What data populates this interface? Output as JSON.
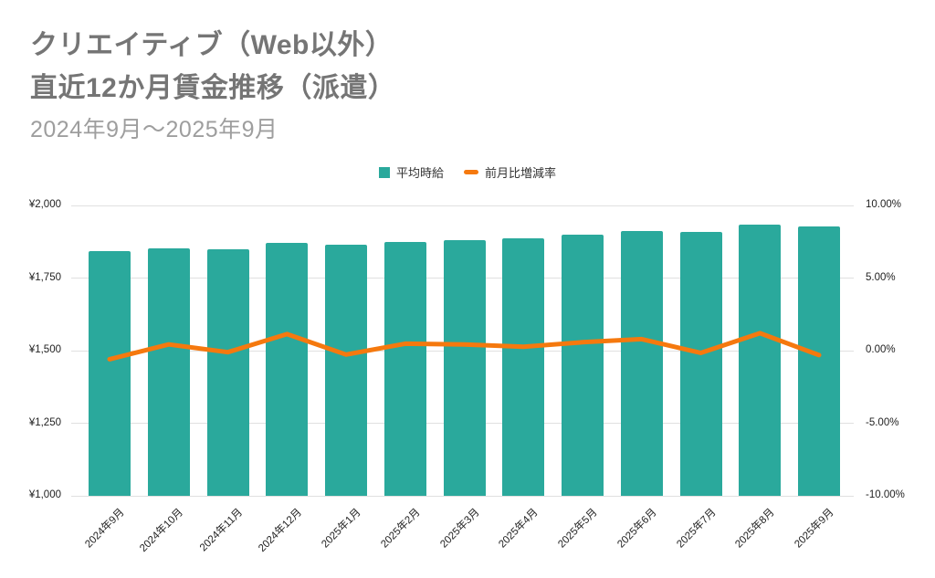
{
  "header": {
    "title_line1": "クリエイティブ（Web以外）",
    "title_line2": "直近12か月賃金推移（派遣）",
    "subtitle": "2024年9月～2025年9月"
  },
  "legend": [
    {
      "label": "平均時給",
      "marker": "square",
      "color": "#2AA99C"
    },
    {
      "label": "前月比増減率",
      "marker": "line",
      "color": "#F5790E"
    }
  ],
  "colors": {
    "bar": "#2AA99C",
    "line": "#F5790E",
    "grid": "#E0E0E0",
    "title": "#757575",
    "subtitle": "#9E9E9E"
  },
  "chart_data": {
    "type": "bar",
    "subtype": "bar-and-line-dual-axis",
    "title": "クリエイティブ（Web以外） 直近12か月賃金推移（派遣）",
    "subtitle": "2024年9月～2025年9月",
    "categories": [
      "2024年9月",
      "2024年10月",
      "2024年11月",
      "2024年12月",
      "2025年1月",
      "2025年2月",
      "2025年3月",
      "2025年4月",
      "2025年5月",
      "2025年6月",
      "2025年7月",
      "2025年8月",
      "2025年9月"
    ],
    "series": [
      {
        "name": "平均時給",
        "type": "bar",
        "axis": "left",
        "color": "#2AA99C",
        "values": [
          1843,
          1851,
          1849,
          1870,
          1865,
          1874,
          1882,
          1887,
          1898,
          1913,
          1910,
          1933,
          1927
        ]
      },
      {
        "name": "前月比増減率",
        "type": "line",
        "axis": "right",
        "color": "#F5790E",
        "values": [
          -0.59,
          0.43,
          -0.11,
          1.14,
          -0.27,
          0.48,
          0.43,
          0.27,
          0.58,
          0.79,
          -0.16,
          1.2,
          -0.31
        ]
      }
    ],
    "left_axis": {
      "unit": "yen",
      "min": 1000,
      "max": 2000,
      "ticks": [
        "¥2,000",
        "¥1,750",
        "¥1,500",
        "¥1,250",
        "¥1,000"
      ]
    },
    "right_axis": {
      "unit": "percent",
      "min": -10,
      "max": 10,
      "ticks": [
        "10.00%",
        "5.00%",
        "0.00%",
        "-5.00%",
        "-10.00%"
      ]
    },
    "grid": true,
    "legend_position": "top"
  }
}
